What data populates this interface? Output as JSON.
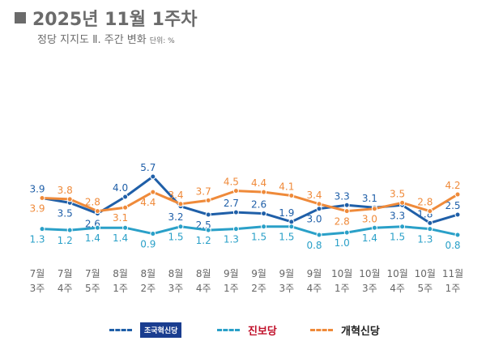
{
  "title": "2025년 11월 1주차",
  "subtitle": "정당 지지도 Ⅱ. 주간 변화",
  "unit": "단위: %",
  "chart_data": {
    "type": "line",
    "categories": [
      [
        "7월",
        "3주"
      ],
      [
        "7월",
        "4주"
      ],
      [
        "7월",
        "5주"
      ],
      [
        "8월",
        "1주"
      ],
      [
        "8월",
        "2주"
      ],
      [
        "8월",
        "3주"
      ],
      [
        "8월",
        "4주"
      ],
      [
        "9월",
        "1주"
      ],
      [
        "9월",
        "2주"
      ],
      [
        "9월",
        "3주"
      ],
      [
        "9월",
        "4주"
      ],
      [
        "10월",
        "1주"
      ],
      [
        "10월",
        "3주"
      ],
      [
        "10월",
        "4주"
      ],
      [
        "10월",
        "5주"
      ],
      [
        "11월",
        "1주"
      ]
    ],
    "series": [
      {
        "name": "조국혁신당",
        "color": "#1f5fa8",
        "values": [
          3.9,
          3.5,
          2.6,
          4.0,
          5.7,
          3.2,
          2.5,
          2.7,
          2.6,
          1.9,
          3.0,
          3.3,
          3.1,
          3.3,
          1.8,
          2.5
        ]
      },
      {
        "name": "진보당",
        "color": "#2aa0c8",
        "values": [
          1.3,
          1.2,
          1.4,
          1.4,
          0.9,
          1.5,
          1.2,
          1.3,
          1.5,
          1.5,
          0.8,
          1.0,
          1.4,
          1.5,
          1.3,
          0.8
        ]
      },
      {
        "name": "개혁신당",
        "color": "#ef8a3a",
        "values": [
          3.9,
          3.8,
          2.8,
          3.1,
          4.4,
          3.4,
          3.7,
          4.5,
          4.4,
          4.1,
          3.4,
          2.8,
          3.0,
          3.5,
          2.8,
          4.2
        ]
      }
    ],
    "grid": false,
    "legend": "bottom"
  },
  "legend": {
    "label_colors": [
      "#ffffff",
      "#c0102a",
      "#222222"
    ]
  }
}
